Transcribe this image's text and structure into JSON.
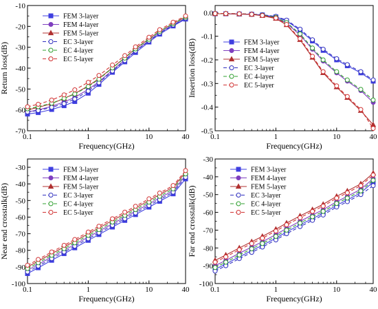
{
  "chart_data": [
    {
      "id": "return_loss",
      "type": "line",
      "x_scale": "log",
      "xlabel": "Frequency(GHz)",
      "ylabel": "Return loss(dB)",
      "xlim": [
        0.1,
        40
      ],
      "ylim": [
        -70,
        -10
      ],
      "x_ticks": [
        0.1,
        1,
        10,
        40
      ],
      "x_tick_labels": [
        "0.1",
        "1",
        "10",
        "40"
      ],
      "y_ticks": [
        -70,
        -60,
        -50,
        -40,
        -30,
        -20,
        -10
      ],
      "y_tick_labels": [
        "-70",
        "-60",
        "-50",
        "-40",
        "-30",
        "-20",
        "-10"
      ],
      "legend_position": "top-left",
      "x": [
        0.1,
        0.15,
        0.25,
        0.4,
        0.6,
        1,
        1.5,
        2.5,
        4,
        6,
        10,
        15,
        25,
        40
      ],
      "series": [
        {
          "name": "FEM 3-layer",
          "style": "solid",
          "marker": "square",
          "color": "#3f3fe0",
          "values": [
            -62,
            -61.3,
            -59.8,
            -58,
            -56,
            -52,
            -47.8,
            -42,
            -37,
            -32.5,
            -27.5,
            -23.7,
            -19.8,
            -16.5
          ]
        },
        {
          "name": "FEM 4-layer",
          "style": "solid",
          "marker": "circle",
          "color": "#7f3fbf",
          "values": [
            -61,
            -60,
            -58.3,
            -56.2,
            -54,
            -50.2,
            -46.5,
            -41,
            -36,
            -31.6,
            -26.8,
            -23,
            -19.2,
            -16.2
          ]
        },
        {
          "name": "FEM 5-layer",
          "style": "solid",
          "marker": "triangle",
          "color": "#b03030",
          "values": [
            -60,
            -58.8,
            -57,
            -54.5,
            -52.2,
            -48.5,
            -45,
            -39.8,
            -35,
            -30.6,
            -26,
            -22.3,
            -18.6,
            -15.5
          ]
        },
        {
          "name": "EC 3-layer",
          "style": "dashed",
          "marker": "circle-open",
          "color": "#2f2fbf",
          "values": [
            -61,
            -60.3,
            -58.8,
            -57,
            -54.8,
            -51,
            -47,
            -41.4,
            -36.4,
            -31.8,
            -27,
            -23.2,
            -19.4,
            -16.2
          ]
        },
        {
          "name": "EC 4-layer",
          "style": "dashed",
          "marker": "circle-open",
          "color": "#2f9f2f",
          "values": [
            -59.5,
            -58.5,
            -56.8,
            -54.5,
            -52.4,
            -48.8,
            -45.3,
            -39.9,
            -35.2,
            -30.8,
            -26.2,
            -22.4,
            -18.7,
            -15.6
          ]
        },
        {
          "name": "EC 5-layer",
          "style": "dashed",
          "marker": "circle-open",
          "color": "#d03030",
          "values": [
            -58.5,
            -57.3,
            -55.3,
            -52.8,
            -50.4,
            -46.8,
            -43.5,
            -38.5,
            -34,
            -29.8,
            -25.2,
            -21.6,
            -18,
            -15
          ]
        }
      ]
    },
    {
      "id": "insertion_loss",
      "type": "line",
      "x_scale": "log",
      "xlabel": "Frequency(GHz)",
      "ylabel": "Insertion loss(dB)",
      "xlim": [
        0.1,
        40
      ],
      "ylim": [
        -0.5,
        0.03
      ],
      "x_ticks": [
        0.1,
        1,
        10,
        40
      ],
      "x_tick_labels": [
        "0.1",
        "1",
        "10",
        "40"
      ],
      "y_ticks": [
        0,
        -0.1,
        -0.2,
        -0.3,
        -0.4,
        -0.5
      ],
      "y_tick_labels": [
        "0.0",
        "-0.1",
        "-0.2",
        "-0.3",
        "-0.4",
        "-0.5"
      ],
      "legend_position": "bottom-left",
      "x": [
        0.1,
        0.15,
        0.25,
        0.4,
        0.6,
        1,
        1.5,
        2.5,
        4,
        6,
        10,
        15,
        25,
        40
      ],
      "series": [
        {
          "name": "FEM 3-layer",
          "style": "solid",
          "marker": "square",
          "color": "#3f3fe0",
          "values": [
            -0.005,
            -0.005,
            -0.006,
            -0.007,
            -0.01,
            -0.018,
            -0.035,
            -0.075,
            -0.12,
            -0.16,
            -0.2,
            -0.225,
            -0.255,
            -0.29
          ]
        },
        {
          "name": "FEM 4-layer",
          "style": "solid",
          "marker": "circle",
          "color": "#7f3fbf",
          "values": [
            -0.005,
            -0.005,
            -0.006,
            -0.008,
            -0.012,
            -0.022,
            -0.045,
            -0.095,
            -0.155,
            -0.205,
            -0.255,
            -0.29,
            -0.33,
            -0.38
          ]
        },
        {
          "name": "FEM 5-layer",
          "style": "solid",
          "marker": "triangle",
          "color": "#b03030",
          "values": [
            -0.005,
            -0.005,
            -0.006,
            -0.008,
            -0.013,
            -0.025,
            -0.052,
            -0.115,
            -0.19,
            -0.255,
            -0.315,
            -0.36,
            -0.415,
            -0.475
          ]
        },
        {
          "name": "EC 3-layer",
          "style": "dashed",
          "marker": "circle-open",
          "color": "#2f2fbf",
          "values": [
            -0.004,
            -0.004,
            -0.005,
            -0.006,
            -0.009,
            -0.016,
            -0.032,
            -0.07,
            -0.115,
            -0.155,
            -0.195,
            -0.22,
            -0.25,
            -0.285
          ]
        },
        {
          "name": "EC 4-layer",
          "style": "dashed",
          "marker": "circle-open",
          "color": "#2f9f2f",
          "values": [
            -0.004,
            -0.004,
            -0.005,
            -0.007,
            -0.011,
            -0.02,
            -0.042,
            -0.09,
            -0.15,
            -0.2,
            -0.25,
            -0.285,
            -0.325,
            -0.37
          ]
        },
        {
          "name": "EC 5-layer",
          "style": "dashed",
          "marker": "circle-open",
          "color": "#d03030",
          "values": [
            -0.004,
            -0.004,
            -0.005,
            -0.007,
            -0.012,
            -0.023,
            -0.05,
            -0.11,
            -0.185,
            -0.25,
            -0.31,
            -0.355,
            -0.41,
            -0.49
          ]
        }
      ]
    },
    {
      "id": "near_end_crosstalk",
      "type": "line",
      "x_scale": "log",
      "xlabel": "Frequency(GHz)",
      "ylabel": "Near end crosstalk(dB)",
      "xlim": [
        0.1,
        40
      ],
      "ylim": [
        -100,
        -25
      ],
      "x_ticks": [
        0.1,
        1,
        10,
        40
      ],
      "x_tick_labels": [
        "0.1",
        "1",
        "10",
        "40"
      ],
      "y_ticks": [
        -100,
        -90,
        -80,
        -70,
        -60,
        -50,
        -40,
        -30
      ],
      "y_tick_labels": [
        "-100",
        "-90",
        "-80",
        "-70",
        "-60",
        "-50",
        "-40",
        "-30"
      ],
      "legend_position": "top-left",
      "x": [
        0.1,
        0.15,
        0.25,
        0.4,
        0.6,
        1,
        1.5,
        2.5,
        4,
        6,
        10,
        15,
        25,
        40
      ],
      "series": [
        {
          "name": "FEM 3-layer",
          "style": "solid",
          "marker": "square",
          "color": "#3f3fe0",
          "values": [
            -94,
            -90.5,
            -86,
            -82,
            -78.5,
            -74,
            -70.5,
            -66,
            -62,
            -58.5,
            -54,
            -50.5,
            -46,
            -37
          ]
        },
        {
          "name": "FEM 4-layer",
          "style": "solid",
          "marker": "circle",
          "color": "#7f3fbf",
          "values": [
            -92,
            -88.5,
            -84,
            -80,
            -76.5,
            -72,
            -68.5,
            -64,
            -60,
            -56.5,
            -52,
            -48.5,
            -44,
            -35
          ]
        },
        {
          "name": "FEM 5-layer",
          "style": "solid",
          "marker": "triangle",
          "color": "#b03030",
          "values": [
            -90,
            -86.5,
            -82,
            -78,
            -74.5,
            -70,
            -66.5,
            -62,
            -58,
            -54.5,
            -50,
            -46.5,
            -42,
            -33
          ]
        },
        {
          "name": "EC 3-layer",
          "style": "dashed",
          "marker": "circle-open",
          "color": "#2f2fbf",
          "values": [
            -93,
            -89.5,
            -85,
            -81,
            -77.5,
            -73,
            -69.5,
            -65,
            -61,
            -57.5,
            -53,
            -49.5,
            -45,
            -36
          ]
        },
        {
          "name": "EC 4-layer",
          "style": "dashed",
          "marker": "circle-open",
          "color": "#2f9f2f",
          "values": [
            -91,
            -87.5,
            -83,
            -79,
            -75.5,
            -71,
            -67.5,
            -63,
            -59,
            -55.5,
            -51,
            -47.5,
            -43,
            -34
          ]
        },
        {
          "name": "EC 5-layer",
          "style": "dashed",
          "marker": "circle-open",
          "color": "#d03030",
          "values": [
            -89,
            -85.5,
            -81,
            -77,
            -73.5,
            -69,
            -65.5,
            -61,
            -57,
            -53.5,
            -49,
            -45.5,
            -41,
            -32
          ]
        }
      ]
    },
    {
      "id": "far_end_crosstalk",
      "type": "line",
      "x_scale": "log",
      "xlabel": "Frequency(GHz)",
      "ylabel": "Far end crosstalk(dB)",
      "xlim": [
        0.1,
        40
      ],
      "ylim": [
        -100,
        -30
      ],
      "x_ticks": [
        0.1,
        1,
        10,
        40
      ],
      "x_tick_labels": [
        "0.1",
        "1",
        "10",
        "40"
      ],
      "y_ticks": [
        -100,
        -90,
        -80,
        -70,
        -60,
        -50,
        -40,
        -30
      ],
      "y_tick_labels": [
        "-100",
        "-90",
        "-80",
        "-70",
        "-60",
        "-50",
        "-40",
        "-30"
      ],
      "legend_position": "top-left",
      "x": [
        0.1,
        0.15,
        0.25,
        0.4,
        0.6,
        1,
        1.5,
        2.5,
        4,
        6,
        10,
        15,
        25,
        40
      ],
      "series": [
        {
          "name": "FEM 3-layer",
          "style": "solid",
          "marker": "square",
          "color": "#3f3fe0",
          "values": [
            -92,
            -89,
            -85,
            -81.5,
            -78.5,
            -74.5,
            -71,
            -67,
            -63.5,
            -60.5,
            -56,
            -53,
            -49,
            -43
          ]
        },
        {
          "name": "FEM 4-layer",
          "style": "solid",
          "marker": "circle",
          "color": "#7f3fbf",
          "values": [
            -90,
            -87,
            -83,
            -79.5,
            -76.5,
            -72.5,
            -69,
            -65,
            -61.5,
            -58.5,
            -54,
            -51,
            -47,
            -41
          ]
        },
        {
          "name": "FEM 5-layer",
          "style": "solid",
          "marker": "triangle",
          "color": "#b03030",
          "values": [
            -87,
            -84,
            -80,
            -76.5,
            -73.5,
            -69.5,
            -66,
            -62,
            -58.5,
            -55.5,
            -51,
            -48,
            -44,
            -38
          ]
        },
        {
          "name": "EC 3-layer",
          "style": "dashed",
          "marker": "circle-open",
          "color": "#2f2fbf",
          "values": [
            -93,
            -90,
            -86,
            -82.5,
            -79.5,
            -75.5,
            -72,
            -68,
            -64.5,
            -61.5,
            -57,
            -54,
            -50,
            -45
          ]
        },
        {
          "name": "EC 4-layer",
          "style": "dashed",
          "marker": "circle-open",
          "color": "#2f9f2f",
          "values": [
            -91,
            -88,
            -84,
            -80.5,
            -77.5,
            -73.5,
            -70,
            -66,
            -62.5,
            -59.5,
            -55,
            -52,
            -48,
            -42
          ]
        },
        {
          "name": "EC 5-layer",
          "style": "dashed",
          "marker": "circle-open",
          "color": "#d03030",
          "values": [
            -88,
            -85,
            -81,
            -77.5,
            -74.5,
            -70.5,
            -67,
            -63,
            -59.5,
            -56.5,
            -52,
            -49,
            -45,
            -39
          ]
        }
      ]
    }
  ]
}
